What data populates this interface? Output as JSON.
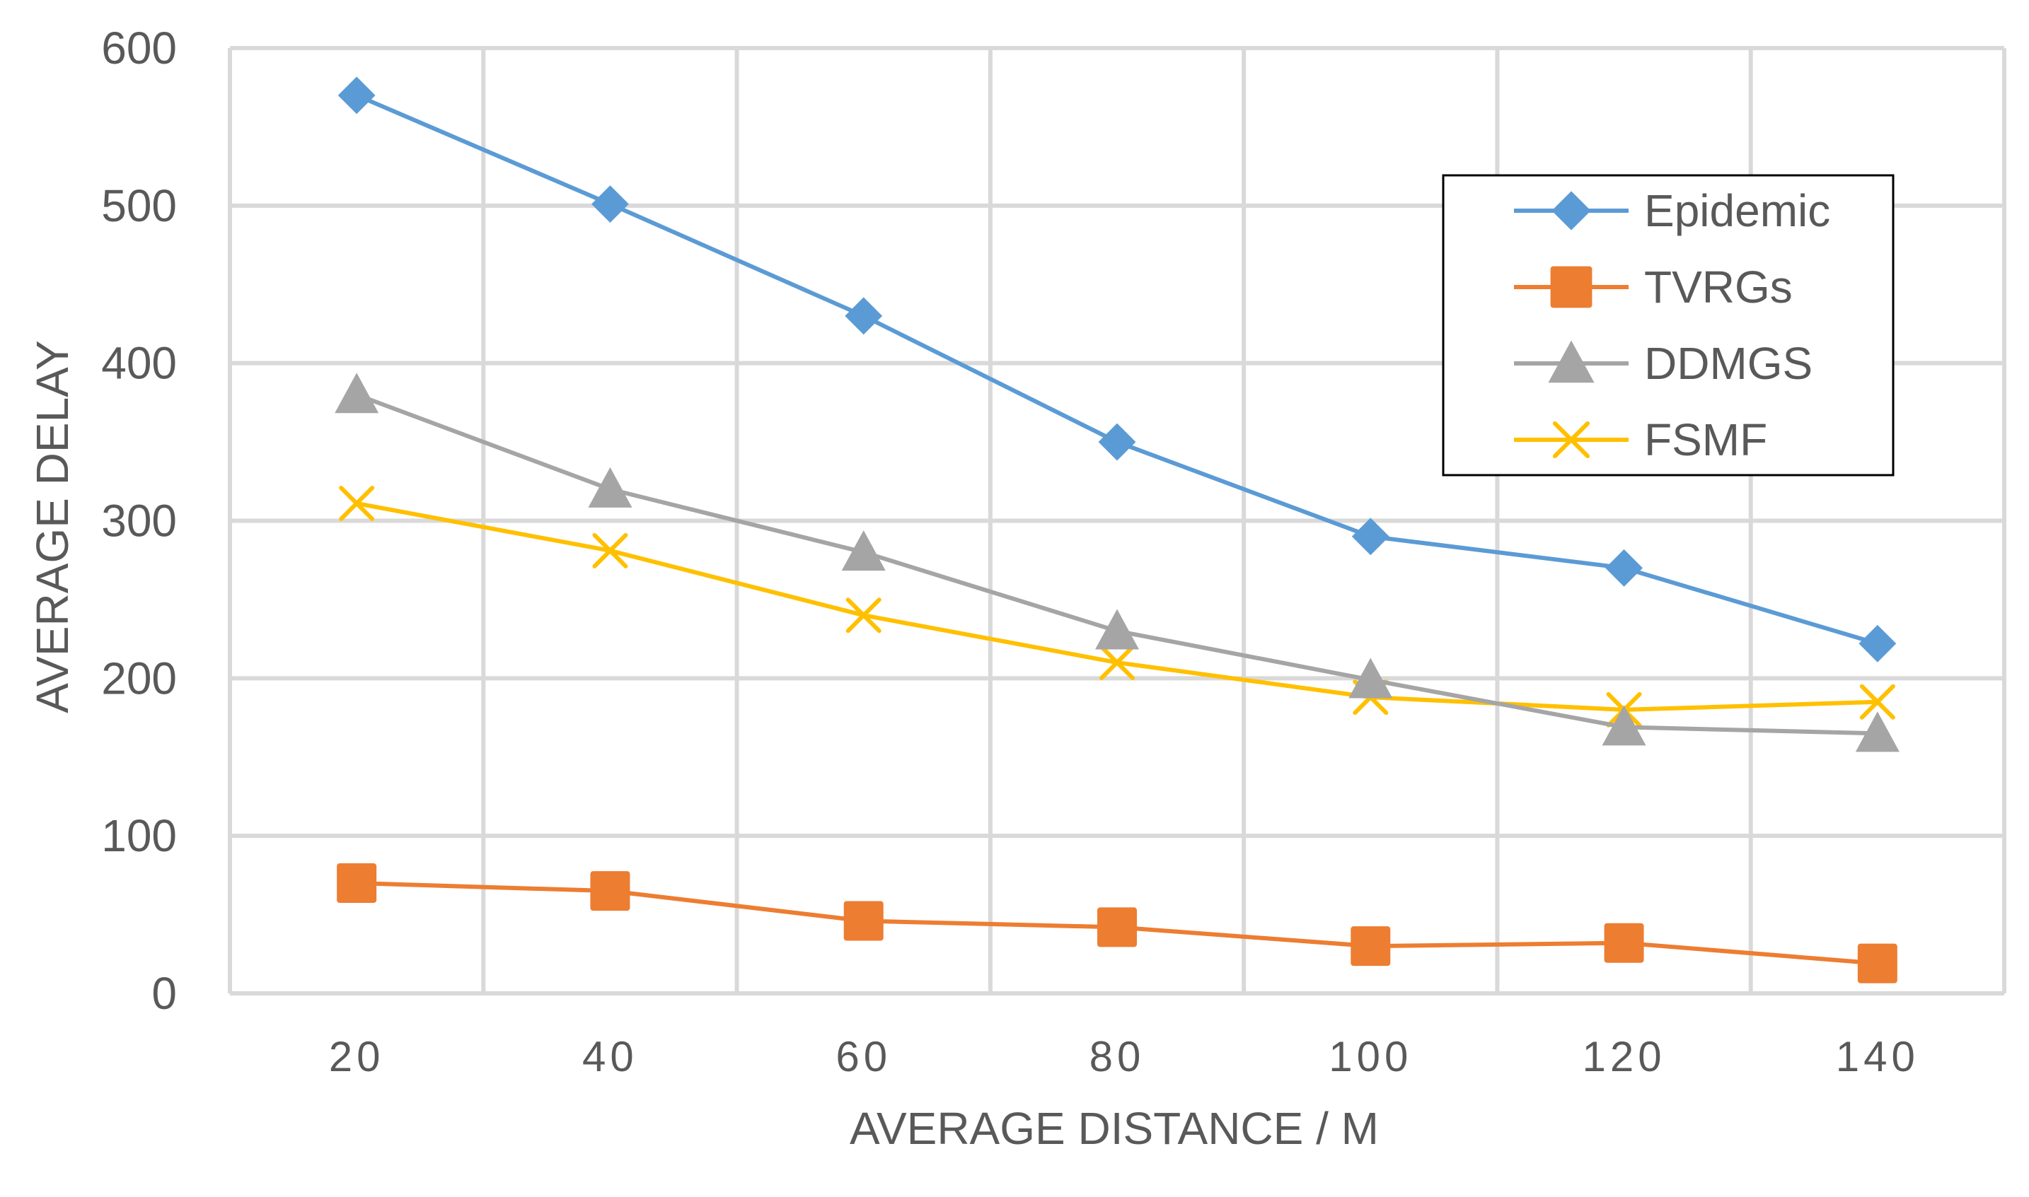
{
  "chart_data": {
    "type": "line",
    "title": "",
    "xlabel": "AVERAGE DISTANCE / M",
    "ylabel": "AVERAGE DELAY",
    "categories": [
      "20",
      "40",
      "60",
      "80",
      "100",
      "120",
      "140"
    ],
    "x": [
      20,
      40,
      60,
      80,
      100,
      120,
      140
    ],
    "xlim": [
      10,
      150
    ],
    "ylim": [
      0,
      600
    ],
    "yticks": [
      "0",
      "100",
      "200",
      "300",
      "400",
      "500",
      "600"
    ],
    "grid": true,
    "legend_position": "top-right",
    "series": [
      {
        "name": "Epidemic",
        "marker": "diamond",
        "color": "#5B9BD5",
        "values": [
          570,
          501,
          430,
          350,
          290,
          270,
          222
        ]
      },
      {
        "name": "TVRGs",
        "marker": "square",
        "color": "#ED7D31",
        "values": [
          70,
          65,
          46,
          42,
          30,
          32,
          19
        ]
      },
      {
        "name": "DDMGS",
        "marker": "triangle",
        "color": "#A5A5A5",
        "values": [
          380,
          320,
          280,
          230,
          199,
          169,
          165
        ]
      },
      {
        "name": "FSMF",
        "marker": "x",
        "color": "#FFC000",
        "values": [
          311,
          281,
          240,
          210,
          188,
          180,
          185
        ]
      }
    ]
  }
}
